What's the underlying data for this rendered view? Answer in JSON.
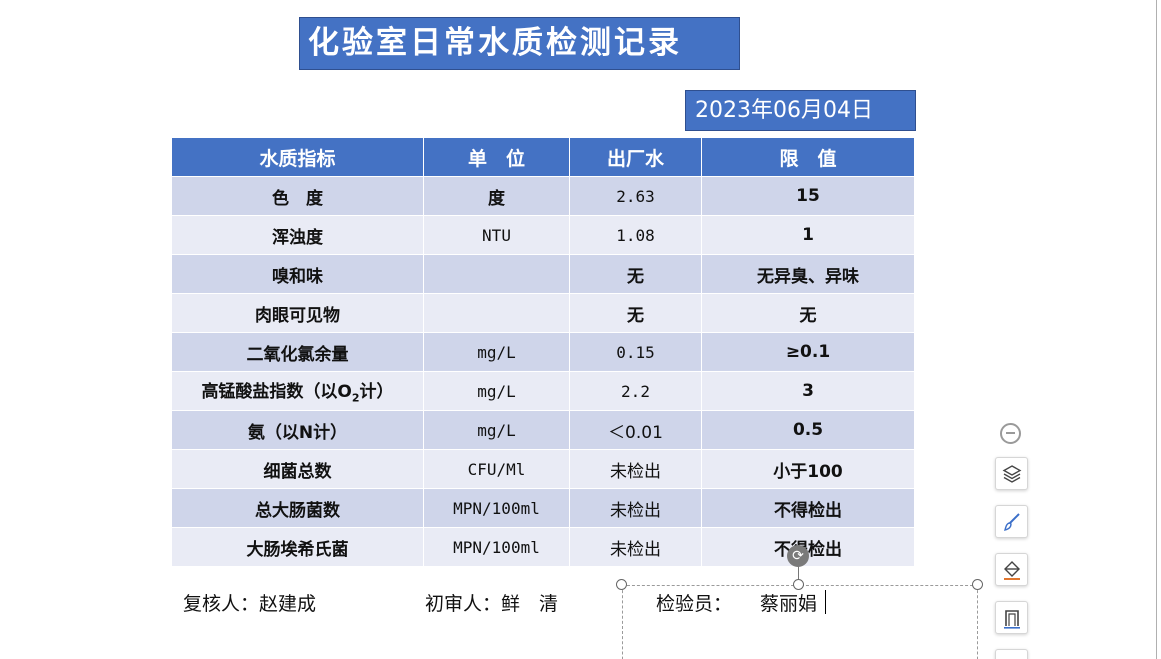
{
  "title": "化验室日常水质检测记录",
  "date": "2023年06月04日",
  "table": {
    "headers": [
      "水质指标",
      "单　位",
      "出厂水",
      "限　值"
    ],
    "rows": [
      {
        "indicator": "色　度",
        "unit": "度",
        "factory": "2.63",
        "limit": "15"
      },
      {
        "indicator": "浑浊度",
        "unit": "NTU",
        "factory": "1.08",
        "limit": "1"
      },
      {
        "indicator": "嗅和味",
        "unit": "",
        "factory": "无",
        "limit": "无异臭、异味"
      },
      {
        "indicator": "肉眼可见物",
        "unit": "",
        "factory": "无",
        "limit": "无"
      },
      {
        "indicator": "二氧化氯余量",
        "unit": "mg/L",
        "factory": "0.15",
        "limit": "≥0.1"
      },
      {
        "indicator_prefix": "高锰酸盐指数（以O",
        "indicator_sub": "2",
        "indicator_suffix": "计）",
        "unit": "mg/L",
        "factory": "2.2",
        "limit": "3"
      },
      {
        "indicator": "氨（以N计）",
        "unit": "mg/L",
        "factory": "＜0.01",
        "limit": "0.5"
      },
      {
        "indicator": "细菌总数",
        "unit": "CFU/Ml",
        "factory": "未检出",
        "limit": "小于100"
      },
      {
        "indicator": "总大肠菌数",
        "unit": "MPN/100ml",
        "factory": "未检出",
        "limit": "不得检出"
      },
      {
        "indicator": "大肠埃希氏菌",
        "unit": "MPN/100ml",
        "factory": "未检出",
        "limit": "不得检出"
      }
    ]
  },
  "signatures": {
    "reviewer": "复核人：赵建成",
    "first_reviewer": "初审人：鲜　清",
    "inspector_label": "检验员：",
    "inspector_name": "蔡丽娟"
  },
  "toolbar": {
    "icons": [
      "collapse-icon",
      "layers-icon",
      "brush-icon",
      "fill-icon",
      "border-icon"
    ]
  },
  "colors": {
    "header_blue": "#4472c4",
    "row_dark": "#cfd5ea",
    "row_light": "#e9ebf5"
  }
}
